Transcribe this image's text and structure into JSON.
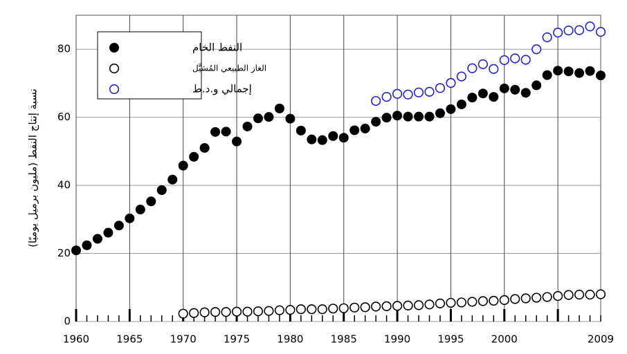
{
  "chart_data": {
    "type": "scatter",
    "y_label": "نسبة إنتاج النفط (مليون برميل يوميًا)",
    "xlim": [
      1960,
      2009
    ],
    "ylim": [
      0,
      90
    ],
    "xticks": [
      1960,
      1965,
      1970,
      1975,
      1980,
      1985,
      1990,
      1995,
      2000,
      2009
    ],
    "xgrid": [
      1960,
      1965,
      1970,
      1975,
      1980,
      1985,
      1990,
      1995,
      2000,
      2005
    ],
    "yticks": [
      0,
      20,
      40,
      60,
      80
    ],
    "grid": true,
    "legend": "upper left",
    "series": [
      {
        "name": "النفط الخام",
        "color": "#000000",
        "filled": true,
        "x": [
          1960,
          1961,
          1962,
          1963,
          1964,
          1965,
          1966,
          1967,
          1968,
          1969,
          1970,
          1971,
          1972,
          1973,
          1974,
          1975,
          1976,
          1977,
          1978,
          1979,
          1980,
          1981,
          1982,
          1983,
          1984,
          1985,
          1986,
          1987,
          1988,
          1989,
          1990,
          1991,
          1992,
          1993,
          1994,
          1995,
          1996,
          1997,
          1998,
          1999,
          2000,
          2001,
          2002,
          2003,
          2004,
          2005,
          2006,
          2007,
          2008,
          2009
        ],
        "values": [
          20.9,
          22.4,
          24.3,
          26.1,
          28.2,
          30.3,
          32.9,
          35.3,
          38.6,
          41.7,
          45.8,
          48.4,
          51.0,
          55.7,
          55.8,
          52.9,
          57.3,
          59.7,
          60.1,
          62.6,
          59.6,
          56.1,
          53.5,
          53.3,
          54.5,
          54.0,
          56.2,
          56.7,
          58.7,
          59.9,
          60.5,
          60.2,
          60.2,
          60.2,
          61.2,
          62.4,
          63.8,
          65.8,
          67.0,
          66.0,
          68.5,
          68.1,
          67.2,
          69.4,
          72.4,
          73.7,
          73.5,
          73.0,
          73.6,
          72.3
        ]
      },
      {
        "name": "الغاز الطبيعي المُسَيَّل",
        "color": "#000000",
        "filled": false,
        "x": [
          1970,
          1971,
          1972,
          1973,
          1974,
          1975,
          1976,
          1977,
          1978,
          1979,
          1980,
          1981,
          1982,
          1983,
          1984,
          1985,
          1986,
          1987,
          1988,
          1989,
          1990,
          1991,
          1992,
          1993,
          1994,
          1995,
          1996,
          1997,
          1998,
          1999,
          2000,
          2001,
          2002,
          2003,
          2004,
          2005,
          2006,
          2007,
          2008,
          2009
        ],
        "values": [
          2.3,
          2.5,
          2.7,
          2.8,
          2.8,
          2.9,
          2.9,
          3.0,
          3.1,
          3.3,
          3.4,
          3.6,
          3.6,
          3.6,
          3.8,
          3.9,
          4.1,
          4.2,
          4.4,
          4.5,
          4.6,
          4.7,
          4.8,
          5.0,
          5.3,
          5.5,
          5.6,
          5.8,
          6.0,
          6.1,
          6.3,
          6.6,
          6.8,
          7.0,
          7.2,
          7.5,
          7.8,
          7.9,
          7.9,
          8.0
        ]
      },
      {
        "name": "إجمالي و.د.ط",
        "color": "#2222cc",
        "filled": false,
        "x": [
          1988,
          1989,
          1990,
          1991,
          1992,
          1993,
          1994,
          1995,
          1996,
          1997,
          1998,
          1999,
          2000,
          2001,
          2002,
          2003,
          2004,
          2005,
          2006,
          2007,
          2008,
          2009
        ],
        "values": [
          64.8,
          66.0,
          66.9,
          66.7,
          67.3,
          67.5,
          68.6,
          70.1,
          72.0,
          74.4,
          75.6,
          74.2,
          76.8,
          77.3,
          76.9,
          80.0,
          83.5,
          84.9,
          85.5,
          85.6,
          86.7,
          85.1
        ]
      }
    ]
  }
}
